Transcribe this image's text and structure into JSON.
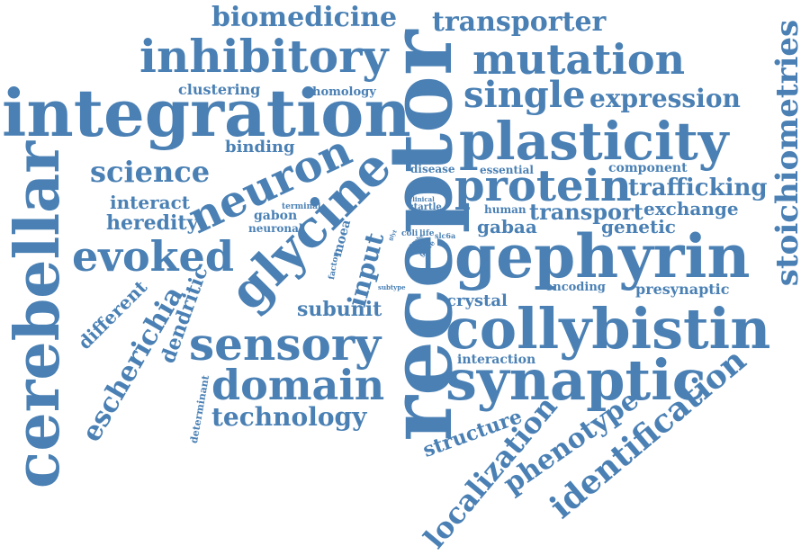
{
  "theme": {
    "word_color": "#4a80b4",
    "background": "#ffffff"
  },
  "words": [
    {
      "text": "receptor",
      "rotation": "vertical"
    },
    {
      "text": "integration",
      "rotation": "horizontal"
    },
    {
      "text": "gephyrin",
      "rotation": "horizontal"
    },
    {
      "text": "collybistin",
      "rotation": "horizontal"
    },
    {
      "text": "cerebellar",
      "rotation": "vertical"
    },
    {
      "text": "synaptic",
      "rotation": "horizontal"
    },
    {
      "text": "plasticity",
      "rotation": "horizontal"
    },
    {
      "text": "inhibitory",
      "rotation": "horizontal"
    },
    {
      "text": "glycine",
      "rotation": "diagonal"
    },
    {
      "text": "sensory",
      "rotation": "horizontal"
    },
    {
      "text": "protein",
      "rotation": "horizontal"
    },
    {
      "text": "neuron",
      "rotation": "diagonal"
    },
    {
      "text": "mutation",
      "rotation": "horizontal"
    },
    {
      "text": "stoichiometries",
      "rotation": "vertical"
    },
    {
      "text": "evoked",
      "rotation": "horizontal"
    },
    {
      "text": "domain",
      "rotation": "horizontal"
    },
    {
      "text": "single",
      "rotation": "horizontal"
    },
    {
      "text": "identification",
      "rotation": "diagonal"
    },
    {
      "text": "localization",
      "rotation": "diagonal"
    },
    {
      "text": "biomedicine",
      "rotation": "horizontal"
    },
    {
      "text": "transporter",
      "rotation": "horizontal"
    },
    {
      "text": "expression",
      "rotation": "horizontal"
    },
    {
      "text": "science",
      "rotation": "horizontal"
    },
    {
      "text": "technology",
      "rotation": "horizontal"
    },
    {
      "text": "phenotype",
      "rotation": "diagonal"
    },
    {
      "text": "escherichia",
      "rotation": "diagonal"
    },
    {
      "text": "trafficking",
      "rotation": "horizontal"
    },
    {
      "text": "transport",
      "rotation": "horizontal"
    },
    {
      "text": "structure",
      "rotation": "diagonal"
    },
    {
      "text": "heredity",
      "rotation": "horizontal"
    },
    {
      "text": "interact",
      "rotation": "horizontal"
    },
    {
      "text": "subunit",
      "rotation": "horizontal"
    },
    {
      "text": "input",
      "rotation": "diagonal"
    },
    {
      "text": "dendritic",
      "rotation": "diagonal"
    },
    {
      "text": "different",
      "rotation": "diagonal"
    },
    {
      "text": "exchange",
      "rotation": "horizontal"
    },
    {
      "text": "genetic",
      "rotation": "horizontal"
    },
    {
      "text": "gabaa",
      "rotation": "horizontal"
    },
    {
      "text": "binding",
      "rotation": "horizontal"
    },
    {
      "text": "clustering",
      "rotation": "horizontal"
    },
    {
      "text": "presynaptic",
      "rotation": "horizontal"
    },
    {
      "text": "crystal",
      "rotation": "horizontal"
    },
    {
      "text": "component",
      "rotation": "horizontal"
    },
    {
      "text": "interaction",
      "rotation": "horizontal"
    },
    {
      "text": "homology",
      "rotation": "horizontal"
    },
    {
      "text": "encoding",
      "rotation": "horizontal"
    },
    {
      "text": "essential",
      "rotation": "horizontal"
    },
    {
      "text": "disease",
      "rotation": "horizontal"
    },
    {
      "text": "gabon",
      "rotation": "horizontal"
    },
    {
      "text": "neuronal",
      "rotation": "horizontal"
    },
    {
      "text": "human",
      "rotation": "horizontal"
    },
    {
      "text": "moea",
      "rotation": "diagonal"
    },
    {
      "text": "determinant",
      "rotation": "diagonal"
    },
    {
      "text": "startle",
      "rotation": "horizontal"
    },
    {
      "text": "factor",
      "rotation": "diagonal"
    },
    {
      "text": "terminal",
      "rotation": "horizontal"
    },
    {
      "text": "coli",
      "rotation": "horizontal"
    },
    {
      "text": "life",
      "rotation": "horizontal"
    },
    {
      "text": "slc6a",
      "rotation": "horizontal"
    },
    {
      "text": "gene",
      "rotation": "diagonal"
    },
    {
      "text": "clinical",
      "rotation": "horizontal"
    },
    {
      "text": "subtype",
      "rotation": "horizontal"
    },
    {
      "text": "glyt",
      "rotation": "diagonal"
    },
    {
      "text": "probe",
      "rotation": "diagonal"
    }
  ]
}
